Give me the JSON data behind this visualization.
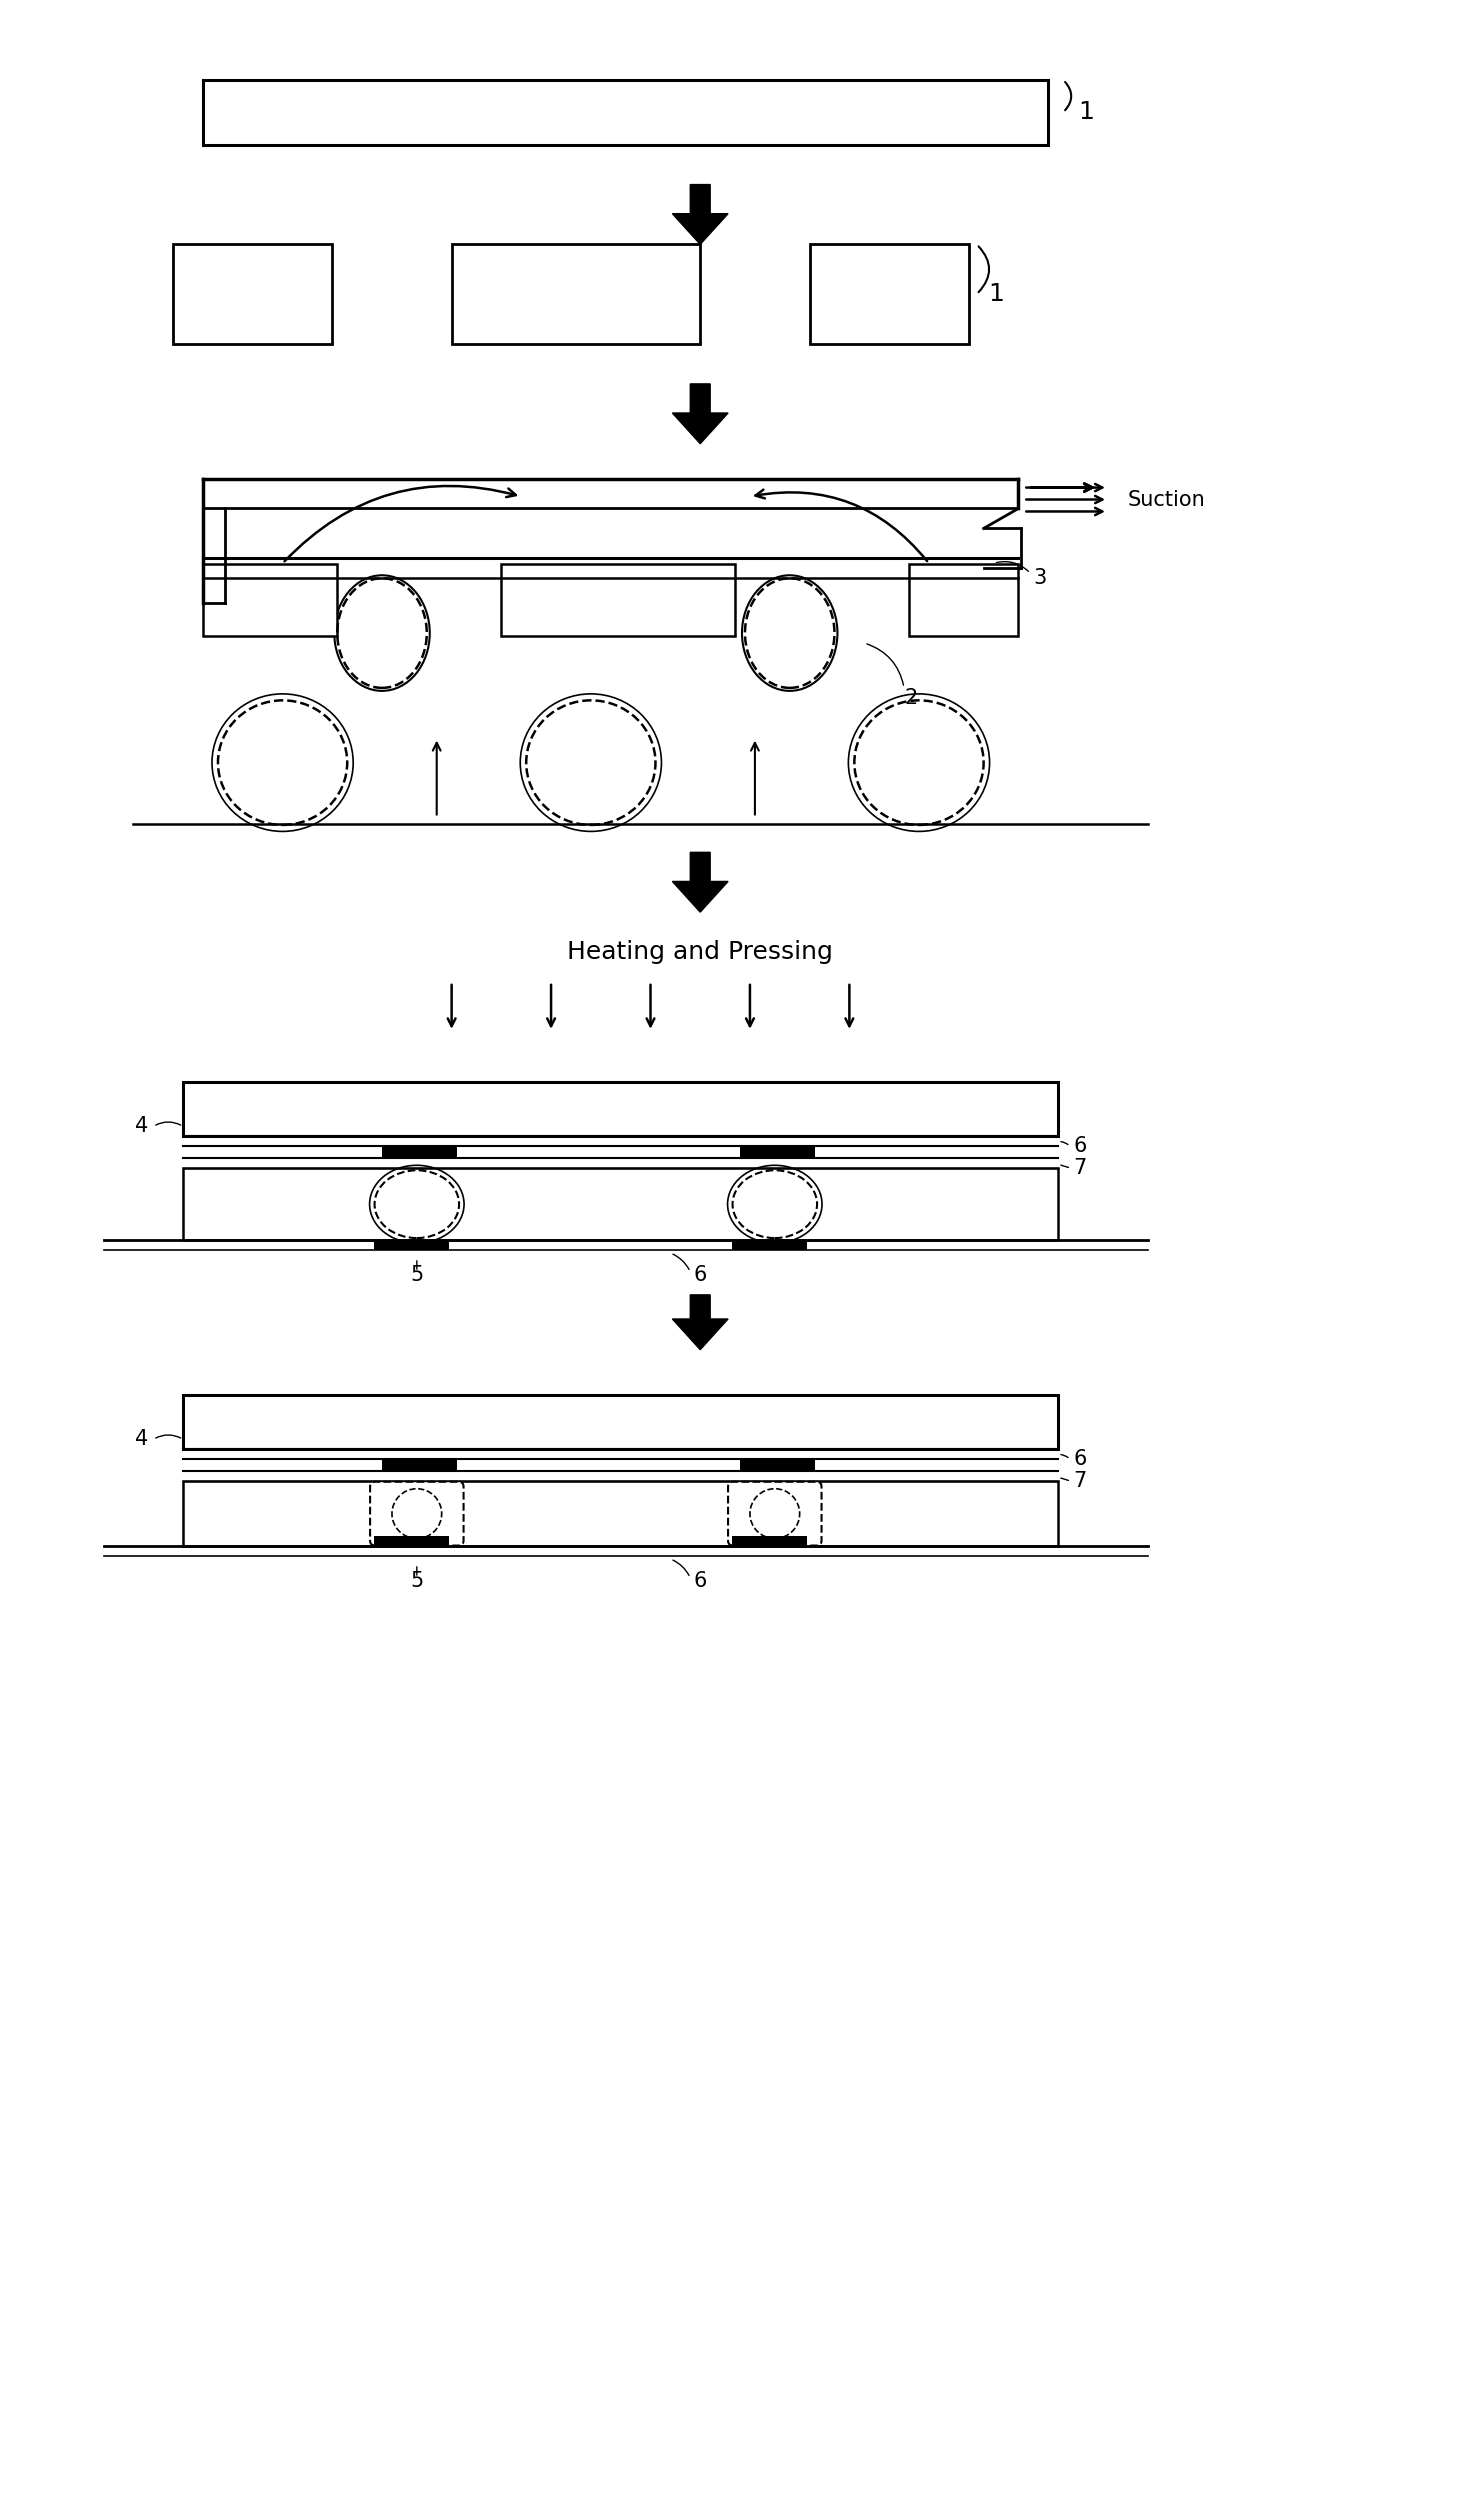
{
  "bg_color": "#ffffff",
  "line_color": "#000000",
  "fig_width": 14.78,
  "fig_height": 25.11
}
